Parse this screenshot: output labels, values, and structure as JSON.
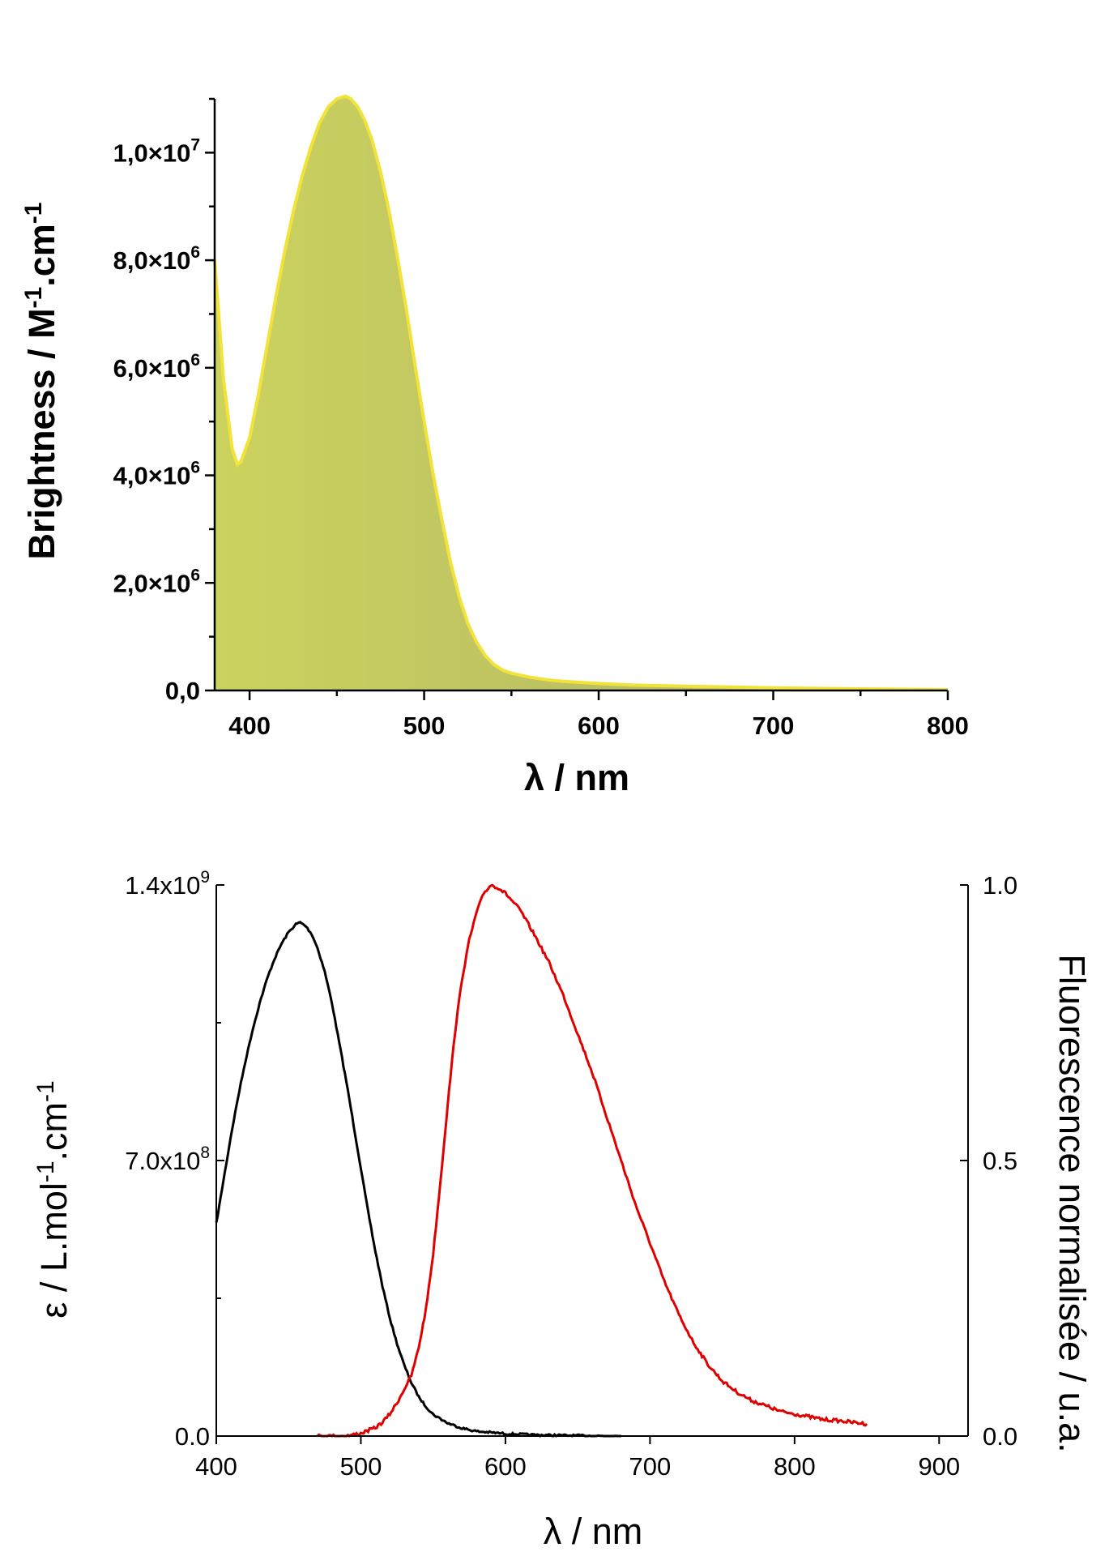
{
  "chart_data": [
    {
      "type": "area",
      "title": "",
      "xlabel": "λ / nm",
      "ylabel": "Brightness / M-1.cm-1",
      "ylabel_parts": [
        "Brightness / M",
        "-1",
        ".cm",
        "-1"
      ],
      "xlim": [
        380,
        800
      ],
      "ylim": [
        0,
        11000000
      ],
      "x_ticks": [
        400,
        500,
        600,
        700,
        800
      ],
      "y_ticks": [
        {
          "value": 0,
          "mantissa": "0,0",
          "exp": ""
        },
        {
          "value": 2000000,
          "mantissa": "2,0×10",
          "exp": "6"
        },
        {
          "value": 4000000,
          "mantissa": "4,0×10",
          "exp": "6"
        },
        {
          "value": 6000000,
          "mantissa": "6,0×10",
          "exp": "6"
        },
        {
          "value": 8000000,
          "mantissa": "8,0×10",
          "exp": "6"
        },
        {
          "value": 10000000,
          "mantissa": "1,0×10",
          "exp": "7"
        }
      ],
      "grid": false,
      "colors": {
        "fill_light": "#cbd35e",
        "fill_dark": "#aeae68",
        "outline": "#f2e33a"
      },
      "series": [
        {
          "x": [
            380,
            385,
            390,
            393,
            395,
            400,
            405,
            410,
            415,
            420,
            425,
            430,
            435,
            440,
            445,
            450,
            455,
            458,
            462,
            466,
            470,
            475,
            480,
            485,
            490,
            495,
            500,
            505,
            510,
            515,
            520,
            525,
            530,
            535,
            540,
            545,
            550,
            560,
            570,
            580,
            600,
            620,
            650,
            700,
            750,
            800
          ],
          "y": [
            8000000,
            5800000,
            4500000,
            4200000,
            4250000,
            4700000,
            5500000,
            6400000,
            7300000,
            8150000,
            8900000,
            9550000,
            10100000,
            10550000,
            10850000,
            11000000,
            11050000,
            11000000,
            10850000,
            10600000,
            10250000,
            9650000,
            8900000,
            8000000,
            7050000,
            6000000,
            5000000,
            4050000,
            3200000,
            2400000,
            1750000,
            1250000,
            900000,
            650000,
            480000,
            380000,
            320000,
            250000,
            200000,
            170000,
            130000,
            100000,
            80000,
            50000,
            30000,
            15000
          ]
        }
      ]
    },
    {
      "type": "line",
      "title": "",
      "xlabel": "λ / nm",
      "ylabel": "ε / L.mol-1.cm-1",
      "ylabel_parts": [
        "ε / L.mol",
        "-1",
        ".cm",
        "-1"
      ],
      "y2label": "Fluorescence normalisée / u.a.",
      "xlim": [
        400,
        920
      ],
      "ylim": [
        0,
        1400000000
      ],
      "y2lim": [
        0,
        1.0
      ],
      "x_ticks": [
        400,
        500,
        600,
        700,
        800,
        900
      ],
      "y_ticks": [
        {
          "value": 0,
          "mantissa": "0.0",
          "exp": ""
        },
        {
          "value": 700000000,
          "mantissa": "7.0x10",
          "exp": "8"
        },
        {
          "value": 1400000000,
          "mantissa": "1.4x10",
          "exp": "9"
        }
      ],
      "y2_ticks": [
        {
          "value": 0,
          "label": "0.0"
        },
        {
          "value": 0.5,
          "label": "0.5"
        },
        {
          "value": 1.0,
          "label": "1.0"
        }
      ],
      "grid": false,
      "series": [
        {
          "axis": "left",
          "color": "#000000",
          "x": [
            400,
            405,
            410,
            415,
            420,
            425,
            430,
            435,
            440,
            445,
            450,
            455,
            458,
            462,
            466,
            470,
            475,
            480,
            485,
            490,
            495,
            500,
            505,
            510,
            515,
            520,
            525,
            530,
            535,
            540,
            545,
            550,
            560,
            570,
            580,
            600,
            620,
            650,
            680
          ],
          "y": [
            540000000,
            650000000,
            760000000,
            860000000,
            950000000,
            1030000000,
            1100000000,
            1160000000,
            1210000000,
            1250000000,
            1280000000,
            1300000000,
            1305000000,
            1295000000,
            1275000000,
            1240000000,
            1180000000,
            1100000000,
            1000000000,
            900000000,
            790000000,
            680000000,
            570000000,
            470000000,
            380000000,
            300000000,
            235000000,
            180000000,
            135000000,
            100000000,
            75000000,
            55000000,
            33000000,
            20000000,
            12000000,
            6000000,
            3000000,
            1000000,
            0
          ]
        },
        {
          "axis": "right",
          "color": "#e00000",
          "x": [
            470,
            490,
            500,
            510,
            515,
            520,
            525,
            530,
            535,
            540,
            545,
            550,
            555,
            560,
            565,
            570,
            575,
            580,
            585,
            590,
            595,
            600,
            605,
            610,
            620,
            630,
            640,
            650,
            660,
            670,
            680,
            690,
            700,
            710,
            720,
            730,
            740,
            750,
            760,
            770,
            780,
            790,
            800,
            810,
            820,
            830,
            840,
            850
          ],
          "y": [
            0.0,
            0.0,
            0.005,
            0.015,
            0.025,
            0.04,
            0.06,
            0.085,
            0.11,
            0.16,
            0.23,
            0.33,
            0.46,
            0.6,
            0.73,
            0.83,
            0.9,
            0.95,
            0.985,
            1.0,
            0.995,
            0.985,
            0.97,
            0.955,
            0.91,
            0.86,
            0.8,
            0.73,
            0.66,
            0.58,
            0.5,
            0.42,
            0.35,
            0.28,
            0.22,
            0.17,
            0.13,
            0.1,
            0.08,
            0.065,
            0.055,
            0.045,
            0.04,
            0.035,
            0.03,
            0.028,
            0.025,
            0.022
          ]
        }
      ]
    }
  ]
}
